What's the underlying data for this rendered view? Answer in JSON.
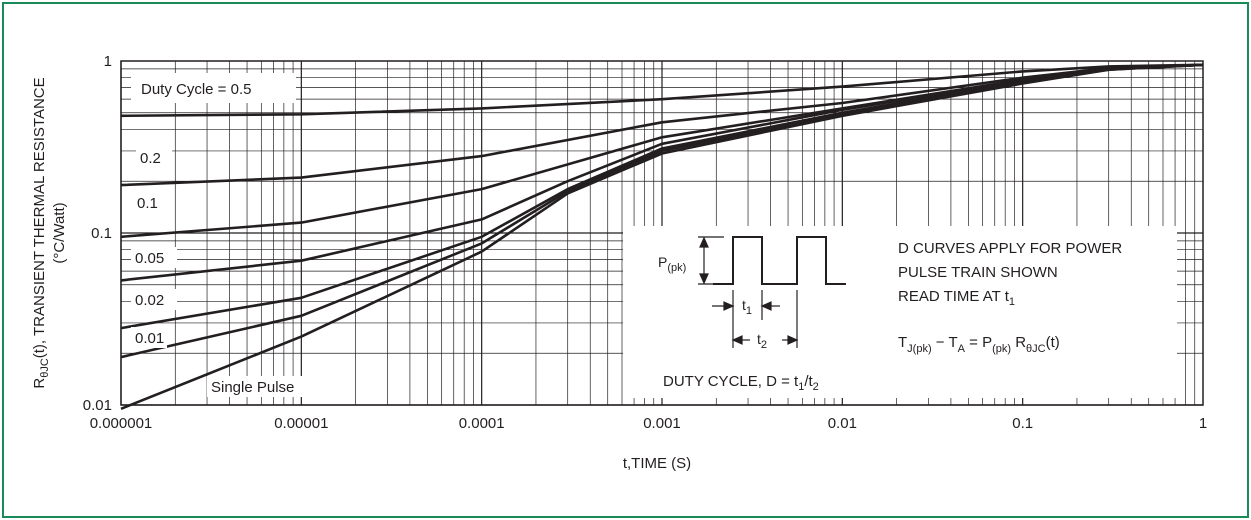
{
  "chart_data": {
    "type": "line",
    "xscale": "log",
    "yscale": "log",
    "xlim": [
      1e-06,
      1
    ],
    "ylim": [
      0.01,
      1
    ],
    "xlabel": "t,TIME (S)",
    "ylabel": "RθJC(t), TRANSIENT THERMAL RESISTANCE",
    "ylabel_unit": "(°C/Watt)",
    "x_ticks": [
      "0.000001",
      "0.00001",
      "0.0001",
      "0.001",
      "0.01",
      "0.1",
      "1"
    ],
    "y_ticks": [
      "0.01",
      "0.1",
      "1"
    ],
    "grid": true,
    "series": [
      {
        "name": "Duty Cycle = 0.5",
        "x": [
          1e-06,
          1e-05,
          0.0001,
          0.001,
          0.01,
          0.1,
          0.3,
          1
        ],
        "y": [
          0.48,
          0.49,
          0.53,
          0.6,
          0.71,
          0.87,
          0.93,
          0.95
        ]
      },
      {
        "name": "0.2",
        "x": [
          1e-06,
          1e-05,
          0.0001,
          0.001,
          0.01,
          0.1,
          0.3,
          1
        ],
        "y": [
          0.19,
          0.21,
          0.28,
          0.44,
          0.57,
          0.8,
          0.91,
          0.95
        ]
      },
      {
        "name": "0.1",
        "x": [
          1e-06,
          1e-05,
          0.0001,
          0.001,
          0.01,
          0.1,
          0.3,
          1
        ],
        "y": [
          0.095,
          0.115,
          0.18,
          0.36,
          0.53,
          0.78,
          0.9,
          0.95
        ]
      },
      {
        "name": "0.05",
        "x": [
          1e-06,
          1e-05,
          0.0001,
          0.0003,
          0.001,
          0.01,
          0.1,
          0.3,
          1
        ],
        "y": [
          0.053,
          0.069,
          0.12,
          0.2,
          0.33,
          0.52,
          0.77,
          0.9,
          0.95
        ]
      },
      {
        "name": "0.02",
        "x": [
          1e-06,
          1e-05,
          0.0001,
          0.0003,
          0.001,
          0.01,
          0.1,
          0.3,
          1
        ],
        "y": [
          0.028,
          0.042,
          0.095,
          0.18,
          0.31,
          0.5,
          0.76,
          0.9,
          0.95
        ]
      },
      {
        "name": "0.01",
        "x": [
          1e-06,
          1e-05,
          0.0001,
          0.0003,
          0.001,
          0.01,
          0.1,
          0.3,
          1
        ],
        "y": [
          0.019,
          0.033,
          0.087,
          0.175,
          0.3,
          0.49,
          0.75,
          0.89,
          0.95
        ]
      },
      {
        "name": "Single Pulse",
        "x": [
          1e-06,
          1e-05,
          0.0001,
          0.0003,
          0.001,
          0.01,
          0.1,
          0.3,
          1
        ],
        "y": [
          0.0095,
          0.025,
          0.078,
          0.17,
          0.29,
          0.48,
          0.74,
          0.89,
          0.95
        ]
      }
    ],
    "series_label_text": [
      "Duty Cycle = 0.5",
      "0.2",
      "0.1",
      "0.05",
      "0.02",
      "0.01",
      "Single Pulse"
    ]
  },
  "annotations": {
    "ppk": "P(pk)",
    "t1": "t1",
    "t2": "t2",
    "duty_cycle": "DUTY CYCLE, D = t1/t2",
    "note1": "D CURVES APPLY FOR POWER",
    "note2": "PULSE TRAIN SHOWN",
    "note3": "READ TIME AT t1",
    "formula": "TJ(pk) − TA = P(pk) RθJC(t)"
  },
  "colors": {
    "frame": "#1a8a5a",
    "curve": "#231f20",
    "grid": "#231f20"
  }
}
